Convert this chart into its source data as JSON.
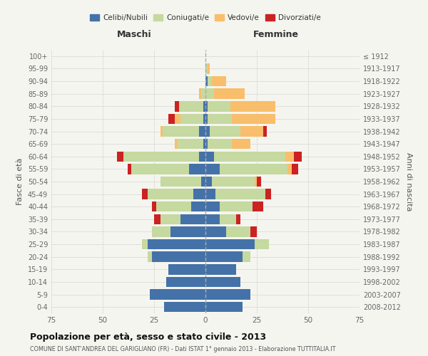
{
  "age_groups": [
    "0-4",
    "5-9",
    "10-14",
    "15-19",
    "20-24",
    "25-29",
    "30-34",
    "35-39",
    "40-44",
    "45-49",
    "50-54",
    "55-59",
    "60-64",
    "65-69",
    "70-74",
    "75-79",
    "80-84",
    "85-89",
    "90-94",
    "95-99",
    "100+"
  ],
  "birth_years": [
    "2008-2012",
    "2003-2007",
    "1998-2002",
    "1993-1997",
    "1988-1992",
    "1983-1987",
    "1978-1982",
    "1973-1977",
    "1968-1972",
    "1963-1967",
    "1958-1962",
    "1953-1957",
    "1948-1952",
    "1943-1947",
    "1938-1942",
    "1933-1937",
    "1928-1932",
    "1923-1927",
    "1918-1922",
    "1913-1917",
    "≤ 1912"
  ],
  "male": {
    "celibi": [
      20,
      27,
      19,
      18,
      26,
      28,
      17,
      12,
      7,
      6,
      2,
      8,
      3,
      1,
      3,
      1,
      1,
      0,
      0,
      0,
      0
    ],
    "coniugati": [
      0,
      0,
      0,
      0,
      2,
      3,
      9,
      10,
      17,
      22,
      20,
      28,
      37,
      13,
      18,
      11,
      12,
      2,
      0,
      0,
      0
    ],
    "vedovi": [
      0,
      0,
      0,
      0,
      0,
      0,
      0,
      0,
      0,
      0,
      0,
      0,
      0,
      1,
      1,
      3,
      0,
      1,
      0,
      0,
      0
    ],
    "divorziati": [
      0,
      0,
      0,
      0,
      0,
      0,
      0,
      3,
      2,
      3,
      0,
      2,
      3,
      0,
      0,
      3,
      2,
      0,
      0,
      0,
      0
    ]
  },
  "female": {
    "nubili": [
      18,
      22,
      17,
      15,
      18,
      24,
      10,
      7,
      7,
      5,
      3,
      7,
      4,
      1,
      2,
      1,
      1,
      0,
      1,
      0,
      0
    ],
    "coniugate": [
      0,
      0,
      0,
      0,
      4,
      7,
      12,
      8,
      16,
      24,
      21,
      33,
      35,
      12,
      15,
      12,
      11,
      4,
      2,
      1,
      0
    ],
    "vedove": [
      0,
      0,
      0,
      0,
      0,
      0,
      0,
      0,
      0,
      0,
      1,
      2,
      4,
      9,
      11,
      21,
      22,
      15,
      7,
      1,
      0
    ],
    "divorziate": [
      0,
      0,
      0,
      0,
      0,
      0,
      3,
      2,
      5,
      3,
      2,
      3,
      4,
      0,
      2,
      0,
      0,
      0,
      0,
      0,
      0
    ]
  },
  "colors": {
    "celibi": "#4472a8",
    "coniugati": "#c5d9a0",
    "vedovi": "#f9be6b",
    "divorziati": "#cc2222"
  },
  "xlim": 75,
  "title": "Popolazione per età, sesso e stato civile - 2013",
  "subtitle": "COMUNE DI SANT'ANDREA DEL GARIGLIANO (FR) - Dati ISTAT 1° gennaio 2013 - Elaborazione TUTTITALIA.IT",
  "xlabel_left": "Maschi",
  "xlabel_right": "Femmine",
  "ylabel": "Fasce di età",
  "ylabel_right": "Anni di nascita",
  "background_color": "#f5f5f0",
  "bar_height": 0.82
}
